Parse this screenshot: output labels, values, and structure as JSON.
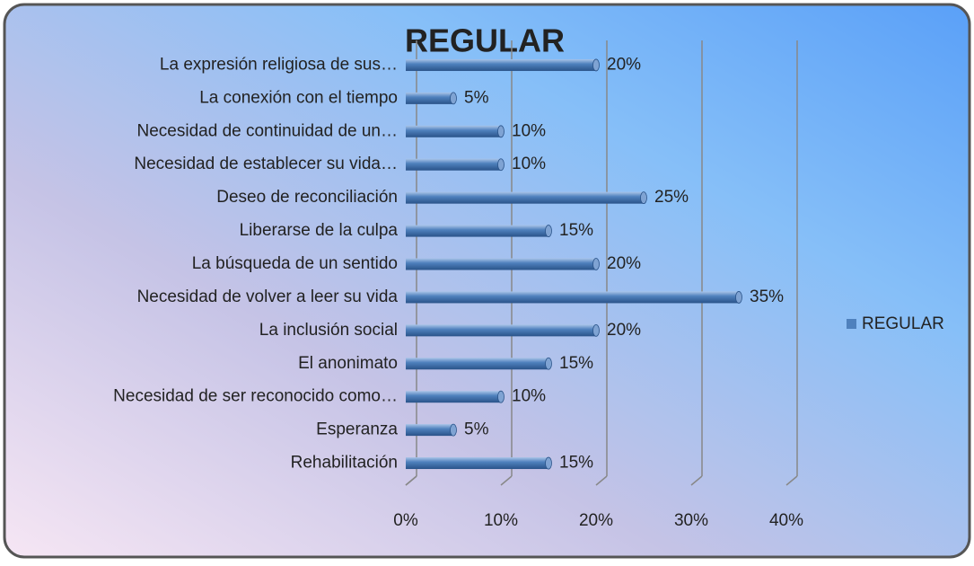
{
  "chart_data": {
    "type": "bar",
    "orientation": "horizontal",
    "title": "REGULAR",
    "categories": [
      "La expresión religiosa de sus…",
      "La conexión con el tiempo",
      "Necesidad de continuidad de un…",
      "Necesidad de establecer su vida…",
      "Deseo de reconciliación",
      "Liberarse de la culpa",
      "La búsqueda de un sentido",
      "Necesidad de volver a leer su vida",
      "La inclusión social",
      "El anonimato",
      "Necesidad de ser reconocido como…",
      "Esperanza",
      "Rehabilitación"
    ],
    "series": [
      {
        "name": "REGULAR",
        "color": "#4f81bd",
        "values": [
          20,
          5,
          10,
          10,
          25,
          15,
          20,
          35,
          20,
          15,
          10,
          5,
          15
        ],
        "value_labels": [
          "20%",
          "5%",
          "10%",
          "10%",
          "25%",
          "15%",
          "20%",
          "35%",
          "20%",
          "15%",
          "10%",
          "5%",
          "15%"
        ]
      }
    ],
    "xlim": [
      0,
      40
    ],
    "xticks": [
      {
        "value": 0,
        "label": "0%"
      },
      {
        "value": 10,
        "label": "10%"
      },
      {
        "value": 20,
        "label": "20%"
      },
      {
        "value": 30,
        "label": "30%"
      },
      {
        "value": 40,
        "label": "40%"
      }
    ],
    "grid": true,
    "legend": "right"
  }
}
